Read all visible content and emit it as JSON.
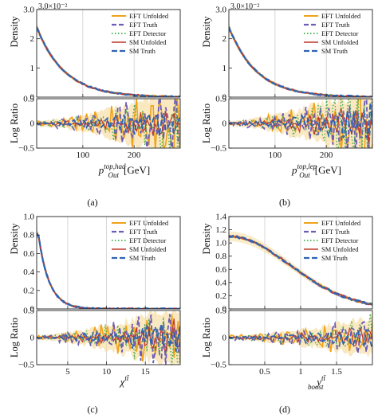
{
  "figure": {
    "colors": {
      "eft_unfolded": "#f0a21a",
      "eft_truth": "#6d5bb5",
      "eft_detector": "#3fae49",
      "sm_unfolded": "#c0392b",
      "sm_truth": "#2e63b0",
      "band": "#f7dca0",
      "grid": "#bdbdbd"
    },
    "legend_entries": [
      "EFT Unfolded",
      "EFT Truth",
      "EFT Detector",
      "SM Unfolded",
      "SM Truth"
    ]
  },
  "chart_data": [
    {
      "type": "line",
      "caption": "(a)",
      "main_ylabel": "Density",
      "ratio_ylabel": "Log Ratio",
      "sci_label": "3.0×10⁻²",
      "xlabel_main": "p",
      "xlabel_sub": "Out",
      "xlabel_sup": "top,had",
      "xlabel_unit": "[GeV]",
      "xlim": [
        10,
        290
      ],
      "xticks": [
        100,
        200
      ],
      "xgrid": [
        100,
        200
      ],
      "main_ylim": [
        0,
        3.0
      ],
      "main_yticks": [
        0,
        1,
        2,
        3
      ],
      "main_yticklabels": [
        "0",
        "1",
        "2",
        "3.0"
      ],
      "ratio_ylim": [
        -0.5,
        0.5
      ],
      "ratio_yticks": [
        -0.5,
        0,
        0.5
      ],
      "ratio_yticklabels": [
        "−0.5",
        "0",
        "0.5"
      ],
      "main_model": "exp",
      "main_params": {
        "a": 2.4,
        "k": 0.0185,
        "x0": 10,
        "noise": 0.03
      },
      "ratio_amplitude_start": 0.05,
      "ratio_amplitude_end": 0.7,
      "ratio_freq": 0.7,
      "seed": 3
    },
    {
      "type": "line",
      "caption": "(b)",
      "main_ylabel": "Density",
      "ratio_ylabel": "Log Ratio",
      "sci_label": "3.0×10⁻²",
      "xlabel_main": "p",
      "xlabel_sub": "Out",
      "xlabel_sup": "top,lep",
      "xlabel_unit": "[GeV]",
      "xlim": [
        10,
        290
      ],
      "xticks": [
        100,
        200
      ],
      "xgrid": [
        100,
        200
      ],
      "main_ylim": [
        0,
        3.0
      ],
      "main_yticks": [
        0,
        1,
        2,
        3
      ],
      "main_yticklabels": [
        "0",
        "1",
        "2",
        "3.0"
      ],
      "ratio_ylim": [
        -0.5,
        0.5
      ],
      "ratio_yticks": [
        -0.5,
        0,
        0.5
      ],
      "ratio_yticklabels": [
        "−0.5",
        "0",
        "0.5"
      ],
      "main_model": "exp",
      "main_params": {
        "a": 2.4,
        "k": 0.0185,
        "x0": 10,
        "noise": 0.03
      },
      "ratio_amplitude_start": 0.05,
      "ratio_amplitude_end": 0.75,
      "ratio_freq": 0.75,
      "seed": 7
    },
    {
      "type": "line",
      "caption": "(c)",
      "main_ylabel": "Density",
      "ratio_ylabel": "Log Ratio",
      "sci_label": "",
      "xlabel_main": "χ",
      "xlabel_sub": "",
      "xlabel_sup": "tt̄",
      "xlabel_unit": "",
      "xlim": [
        1,
        19.5
      ],
      "xticks": [
        5,
        10,
        15
      ],
      "xgrid": [
        5,
        10,
        15
      ],
      "main_ylim": [
        0,
        1.0
      ],
      "main_yticks": [
        0,
        0.2,
        0.4,
        0.6,
        0.8,
        1.0
      ],
      "main_yticklabels": [
        "0",
        "0.2",
        "0.4",
        "0.6",
        "0.8",
        "1.0"
      ],
      "ratio_ylim": [
        -0.5,
        0.5
      ],
      "ratio_yticks": [
        -0.5,
        0,
        0.5
      ],
      "ratio_yticklabels": [
        "−0.5",
        "0",
        "0.5"
      ],
      "main_model": "exp",
      "main_params": {
        "a": 0.82,
        "k": 0.72,
        "x0": 1.2,
        "noise": 0.01
      },
      "ratio_amplitude_start": 0.04,
      "ratio_amplitude_end": 0.6,
      "ratio_freq": 0.9,
      "seed": 11
    },
    {
      "type": "line",
      "caption": "(d)",
      "main_ylabel": "Density",
      "ratio_ylabel": "Log Ratio",
      "sci_label": "",
      "xlabel_main": "y",
      "xlabel_sub": "boost",
      "xlabel_sup": "tt̄",
      "xlabel_unit": "",
      "xlim": [
        0,
        2.0
      ],
      "xticks": [
        0.5,
        1.0,
        1.5
      ],
      "xgrid": [
        0.5,
        1.0,
        1.5
      ],
      "main_ylim": [
        0,
        1.4
      ],
      "main_yticks": [
        0,
        0.2,
        0.4,
        0.6,
        0.8,
        1.0,
        1.2,
        1.4
      ],
      "main_yticklabels": [
        "0",
        "0.2",
        "0.4",
        "0.6",
        "0.8",
        "1.0",
        "1.2",
        "1.4"
      ],
      "ratio_ylim": [
        -0.5,
        0.5
      ],
      "ratio_yticks": [
        -0.5,
        0,
        0.5
      ],
      "ratio_yticklabels": [
        "−0.5",
        "0",
        "0.5"
      ],
      "main_model": "gauss",
      "main_params": {
        "a": 1.1,
        "s": 0.85,
        "x0": 0,
        "noise": 0.02
      },
      "ratio_amplitude_start": 0.04,
      "ratio_amplitude_end": 0.35,
      "ratio_freq": 0.6,
      "seed": 19
    }
  ]
}
